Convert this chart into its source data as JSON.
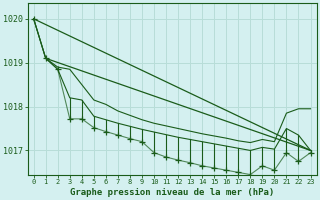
{
  "title": "Graphe pression niveau de la mer (hPa)",
  "background_color": "#d4f0f0",
  "grid_color": "#b8ddd8",
  "line_color": "#1a5c1a",
  "xlim": [
    -0.5,
    23.5
  ],
  "ylim": [
    1016.45,
    1020.35
  ],
  "yticks": [
    1017,
    1018,
    1019,
    1020
  ],
  "xticks": [
    0,
    1,
    2,
    3,
    4,
    5,
    6,
    7,
    8,
    9,
    10,
    11,
    12,
    13,
    14,
    15,
    16,
    17,
    18,
    19,
    20,
    21,
    22,
    23
  ],
  "upper_line": [
    1020.0,
    1019.1,
    1018.9,
    1018.85,
    1018.5,
    1018.15,
    1018.05,
    1017.9,
    1017.8,
    1017.7,
    1017.62,
    1017.56,
    1017.5,
    1017.44,
    1017.38,
    1017.33,
    1017.28,
    1017.22,
    1017.18,
    1017.25,
    1017.2,
    1017.85,
    1017.95,
    1017.95
  ],
  "lower_line": [
    1020.0,
    1019.1,
    1018.85,
    1018.2,
    1018.15,
    1017.78,
    1017.7,
    1017.62,
    1017.55,
    1017.48,
    1017.42,
    1017.36,
    1017.3,
    1017.25,
    1017.2,
    1017.15,
    1017.1,
    1017.05,
    1017.0,
    1017.07,
    1017.03,
    1017.5,
    1017.35,
    1017.0
  ],
  "spike_tips": [
    1020.0,
    1019.1,
    1018.85,
    1017.72,
    1017.72,
    1017.52,
    1017.43,
    1017.35,
    1017.27,
    1017.2,
    1016.95,
    1016.85,
    1016.78,
    1016.72,
    1016.65,
    1016.6,
    1016.55,
    1016.5,
    1016.45,
    1016.65,
    1016.55,
    1016.95,
    1016.75,
    1016.95
  ],
  "trend_upper": [
    1020.0,
    1017.0
  ],
  "trend_lower": [
    1019.1,
    1017.0
  ]
}
